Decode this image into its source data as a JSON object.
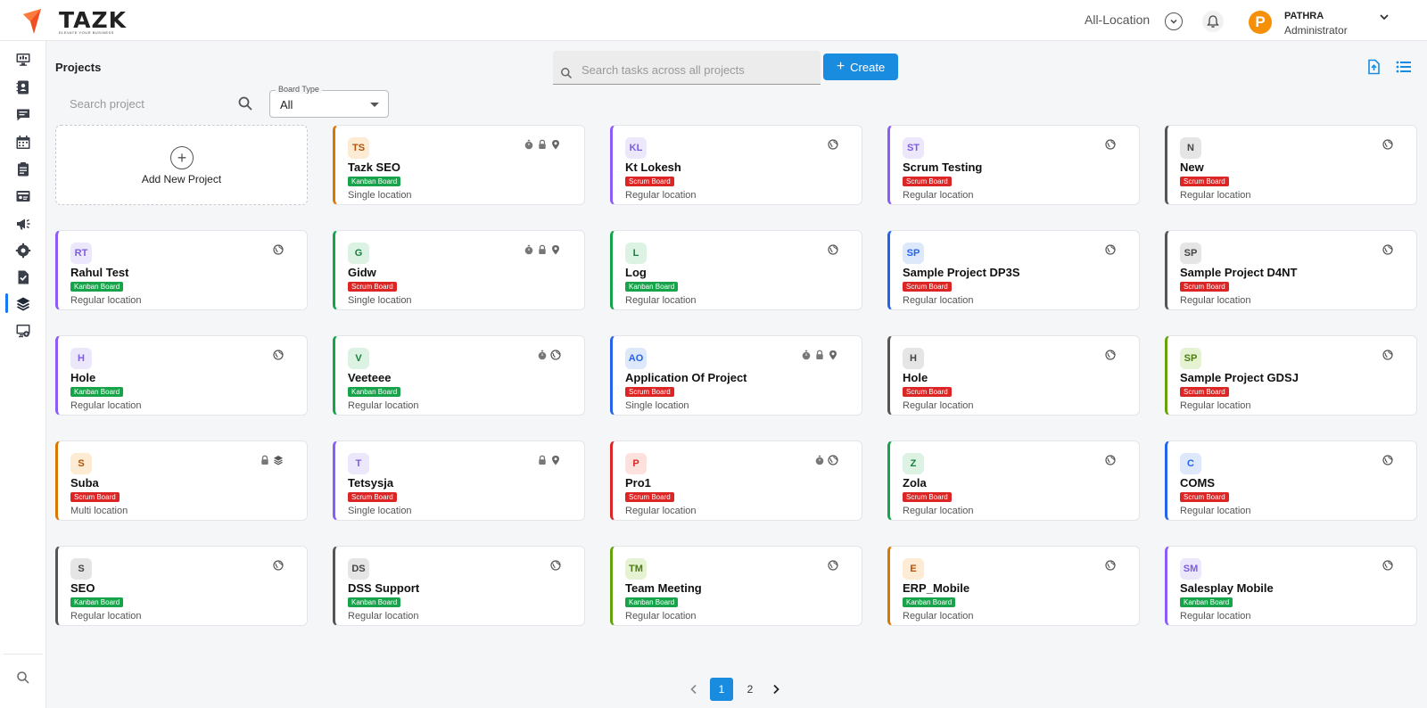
{
  "header": {
    "logo_text": "TAZK",
    "logo_tagline": "ELEVATE YOUR BUSINESS",
    "location_label": "All-Location",
    "user_initial": "P",
    "user_name": "PATHRA",
    "user_role": "Administrator"
  },
  "sidebar": {
    "items": [
      {
        "icon": "monitor-icon"
      },
      {
        "icon": "contacts-icon"
      },
      {
        "icon": "chat-icon"
      },
      {
        "icon": "calendar-icon"
      },
      {
        "icon": "clipboard-icon"
      },
      {
        "icon": "id-card-icon"
      },
      {
        "icon": "megaphone-icon"
      },
      {
        "icon": "tools-icon"
      },
      {
        "icon": "task-check-icon"
      },
      {
        "icon": "layers-icon",
        "active": true
      },
      {
        "icon": "screen-settings-icon"
      }
    ],
    "bottom_icon": "search-icon"
  },
  "main": {
    "title": "Projects",
    "project_search_placeholder": "Search project",
    "board_type_label": "Board Type",
    "board_type_value": "All",
    "task_search_placeholder": "Search tasks across all projects",
    "create_label": "Create",
    "add_new_label": "Add New Project"
  },
  "colors": {
    "primary": "#1a8ce0",
    "kanban": "#16a34a",
    "scrum": "#dc2626",
    "avatar": "#f79009"
  },
  "projects": [
    {
      "initials": "TS",
      "name": "Tazk SEO",
      "board": "Kanban Board",
      "location": "Single location",
      "accent": "#d97706",
      "badge_bg": "#fdebd3",
      "badge_fg": "#b45309",
      "icons": [
        "timer-icon",
        "lock-icon",
        "pin-icon"
      ]
    },
    {
      "initials": "KL",
      "name": "Kt Lokesh",
      "board": "Scrum Board",
      "location": "Regular location",
      "accent": "#8b5cf6",
      "badge_bg": "#ede7fb",
      "badge_fg": "#7c5ce0",
      "icons": [
        "globe-icon"
      ]
    },
    {
      "initials": "ST",
      "name": "Scrum Testing",
      "board": "Scrum Board",
      "location": "Regular location",
      "accent": "#8b5cf6",
      "badge_bg": "#ede7fb",
      "badge_fg": "#7c5ce0",
      "icons": [
        "globe-icon"
      ]
    },
    {
      "initials": "N",
      "name": "New",
      "board": "Scrum Board",
      "location": "Regular location",
      "accent": "#555555",
      "badge_bg": "#e5e5e5",
      "badge_fg": "#444444",
      "icons": [
        "globe-icon"
      ]
    },
    {
      "initials": "RT",
      "name": "Rahul Test",
      "board": "Kanban Board",
      "location": "Regular location",
      "accent": "#8b5cf6",
      "badge_bg": "#ede7fb",
      "badge_fg": "#7c5ce0",
      "icons": [
        "globe-icon"
      ]
    },
    {
      "initials": "G",
      "name": "Gidw",
      "board": "Scrum Board",
      "location": "Single location",
      "accent": "#16a34a",
      "badge_bg": "#dcf3e4",
      "badge_fg": "#15803d",
      "icons": [
        "timer-icon",
        "lock-icon",
        "pin-icon"
      ]
    },
    {
      "initials": "L",
      "name": "Log",
      "board": "Kanban Board",
      "location": "Regular location",
      "accent": "#16a34a",
      "badge_bg": "#dcf3e4",
      "badge_fg": "#15803d",
      "icons": [
        "globe-icon"
      ]
    },
    {
      "initials": "SP",
      "name": "Sample Project DP3S",
      "board": "Scrum Board",
      "location": "Regular location",
      "accent": "#2563eb",
      "badge_bg": "#dde8fb",
      "badge_fg": "#2563eb",
      "icons": [
        "globe-icon"
      ]
    },
    {
      "initials": "SP",
      "name": "Sample Project D4NT",
      "board": "Scrum Board",
      "location": "Regular location",
      "accent": "#555555",
      "badge_bg": "#e5e5e5",
      "badge_fg": "#444444",
      "icons": [
        "globe-icon"
      ]
    },
    {
      "initials": "H",
      "name": "Hole",
      "board": "Kanban Board",
      "location": "Regular location",
      "accent": "#8b5cf6",
      "badge_bg": "#ede7fb",
      "badge_fg": "#7c5ce0",
      "icons": [
        "globe-icon"
      ]
    },
    {
      "initials": "V",
      "name": "Veeteee",
      "board": "Kanban Board",
      "location": "Regular location",
      "accent": "#16a34a",
      "badge_bg": "#dcf3e4",
      "badge_fg": "#15803d",
      "icons": [
        "timer-icon",
        "globe-icon"
      ]
    },
    {
      "initials": "AO",
      "name": "Application Of Project",
      "board": "Scrum Board",
      "location": "Single location",
      "accent": "#2563eb",
      "badge_bg": "#dde8fb",
      "badge_fg": "#2563eb",
      "icons": [
        "timer-icon",
        "lock-icon",
        "pin-icon"
      ]
    },
    {
      "initials": "H",
      "name": "Hole",
      "board": "Scrum Board",
      "location": "Regular location",
      "accent": "#555555",
      "badge_bg": "#e5e5e5",
      "badge_fg": "#444444",
      "icons": [
        "globe-icon"
      ]
    },
    {
      "initials": "SP",
      "name": "Sample Project GDSJ",
      "board": "Scrum Board",
      "location": "Regular location",
      "accent": "#65a30d",
      "badge_bg": "#e6f3d3",
      "badge_fg": "#4d7c0f",
      "icons": [
        "globe-icon"
      ]
    },
    {
      "initials": "S",
      "name": "Suba",
      "board": "Scrum Board",
      "location": "Multi location",
      "accent": "#d97706",
      "badge_bg": "#fdebd3",
      "badge_fg": "#b45309",
      "icons": [
        "lock-icon",
        "layers-icon"
      ]
    },
    {
      "initials": "T",
      "name": "Tetsysja",
      "board": "Scrum Board",
      "location": "Single location",
      "accent": "#8b5cf6",
      "badge_bg": "#ede7fb",
      "badge_fg": "#7c5ce0",
      "icons": [
        "lock-icon",
        "pin-icon"
      ]
    },
    {
      "initials": "P",
      "name": "Pro1",
      "board": "Scrum Board",
      "location": "Regular location",
      "accent": "#dc2626",
      "badge_bg": "#fde1dd",
      "badge_fg": "#dc2626",
      "icons": [
        "timer-icon",
        "globe-icon"
      ]
    },
    {
      "initials": "Z",
      "name": "Zola",
      "board": "Scrum Board",
      "location": "Regular location",
      "accent": "#16a34a",
      "badge_bg": "#dcf3e4",
      "badge_fg": "#15803d",
      "icons": [
        "globe-icon"
      ]
    },
    {
      "initials": "C",
      "name": "COMS",
      "board": "Scrum Board",
      "location": "Regular location",
      "accent": "#2563eb",
      "badge_bg": "#dde8fb",
      "badge_fg": "#2563eb",
      "icons": [
        "globe-icon"
      ]
    },
    {
      "initials": "S",
      "name": "SEO",
      "board": "Kanban Board",
      "location": "Regular location",
      "accent": "#555555",
      "badge_bg": "#e5e5e5",
      "badge_fg": "#444444",
      "icons": [
        "globe-icon"
      ]
    },
    {
      "initials": "DS",
      "name": "DSS Support",
      "board": "Kanban Board",
      "location": "Regular location",
      "accent": "#555555",
      "badge_bg": "#e5e5e5",
      "badge_fg": "#444444",
      "icons": [
        "globe-icon"
      ]
    },
    {
      "initials": "TM",
      "name": "Team Meeting",
      "board": "Kanban Board",
      "location": "Regular location",
      "accent": "#65a30d",
      "badge_bg": "#e6f3d3",
      "badge_fg": "#4d7c0f",
      "icons": [
        "globe-icon"
      ]
    },
    {
      "initials": "E",
      "name": "ERP_Mobile",
      "board": "Kanban Board",
      "location": "Regular location",
      "accent": "#d97706",
      "badge_bg": "#fdebd3",
      "badge_fg": "#b45309",
      "icons": [
        "globe-icon"
      ]
    },
    {
      "initials": "SM",
      "name": "Salesplay Mobile",
      "board": "Kanban Board",
      "location": "Regular location",
      "accent": "#8b5cf6",
      "badge_bg": "#ede7fb",
      "badge_fg": "#7c5ce0",
      "icons": [
        "globe-icon"
      ]
    }
  ],
  "pagination": {
    "pages": [
      "1",
      "2"
    ],
    "current": "1"
  }
}
